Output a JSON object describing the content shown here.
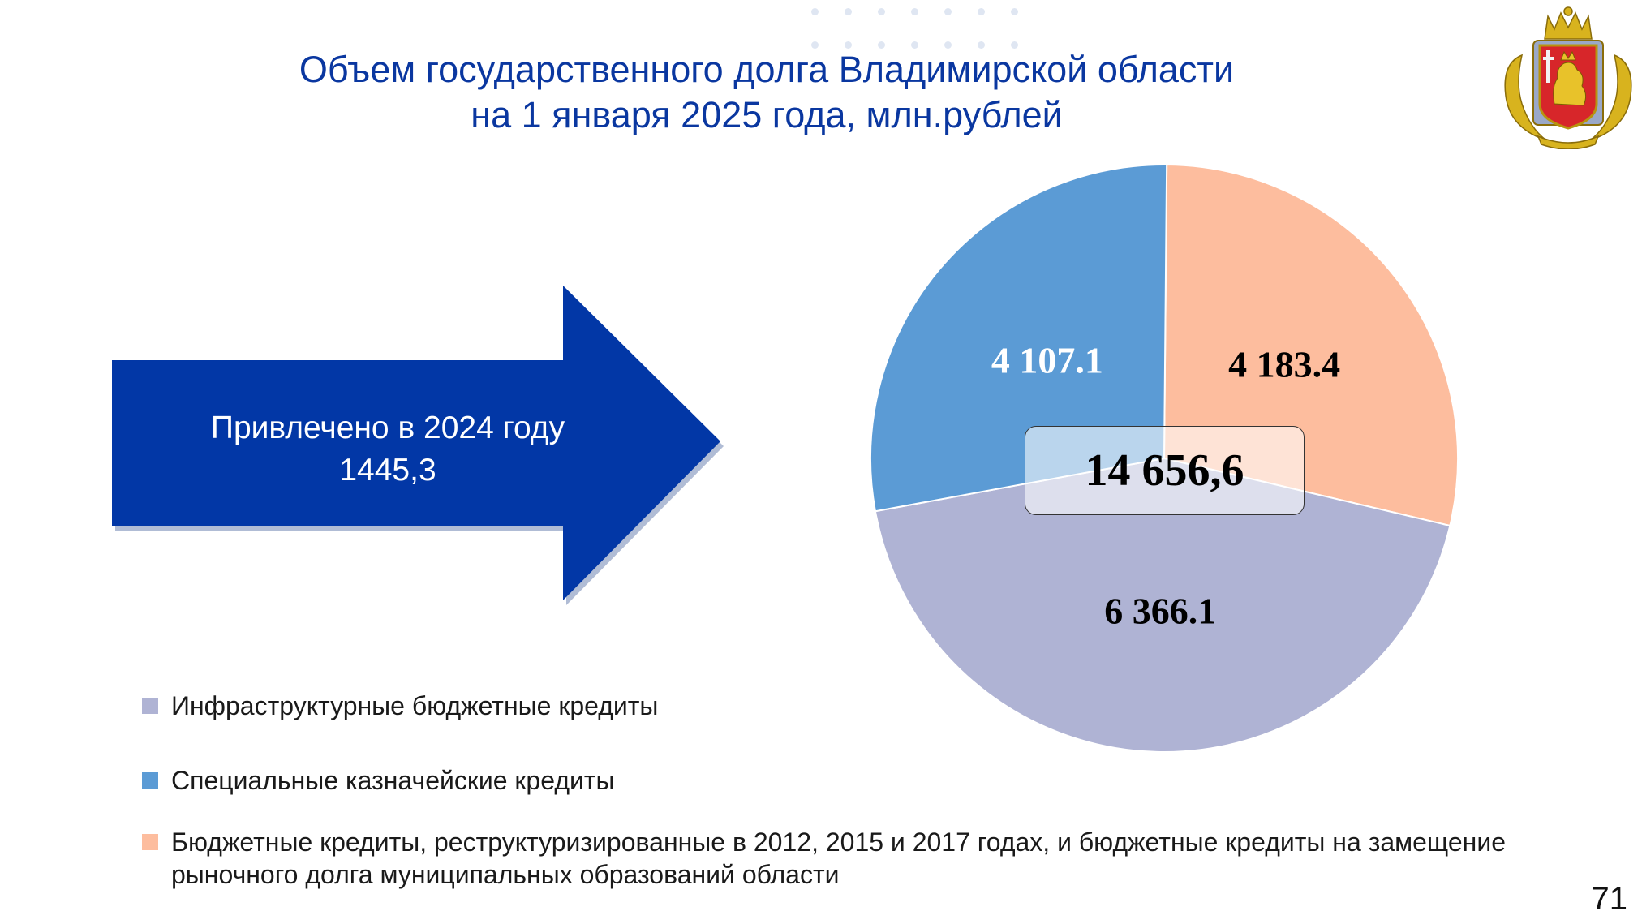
{
  "title": {
    "line1": "Объем государственного долга Владимирской области",
    "line2": "на 1 января 2025 года, млн.рублей"
  },
  "arrow": {
    "line1": "Привлечено в 2024 году",
    "line2": "1445,3",
    "color": "#0237a6"
  },
  "chart_data": {
    "type": "pie",
    "total_label": "14 656,6",
    "slices": [
      {
        "label": "Бюджетные кредиты, реструктуризированные в 2012, 2015 и 2017 годах, и бюджетные кредиты на замещение рыночного долга муниципальных образований области",
        "value": 4183.4,
        "display": "4 183.4",
        "color": "#fdbd9e",
        "label_color": "#000000"
      },
      {
        "label": "Инфраструктурные бюджетные кредиты",
        "value": 6366.1,
        "display": "6 366.1",
        "color": "#afb3d4",
        "label_color": "#000000"
      },
      {
        "label": "Специальные казначейские кредиты",
        "value": 4107.1,
        "display": "4 107.1",
        "color": "#5b9bd5",
        "label_color": "#ffffff"
      }
    ],
    "legend": [
      {
        "label": "Инфраструктурные бюджетные кредиты",
        "color": "#afb3d4"
      },
      {
        "label": "Специальные казначейские кредиты",
        "color": "#5b9bd5"
      },
      {
        "label": "Бюджетные кредиты, реструктуризированные в 2012, 2015 и 2017 годах, и бюджетные кредиты на замещение рыночного долга муниципальных образований области",
        "color": "#fdbd9e"
      }
    ]
  },
  "page_number": "71"
}
